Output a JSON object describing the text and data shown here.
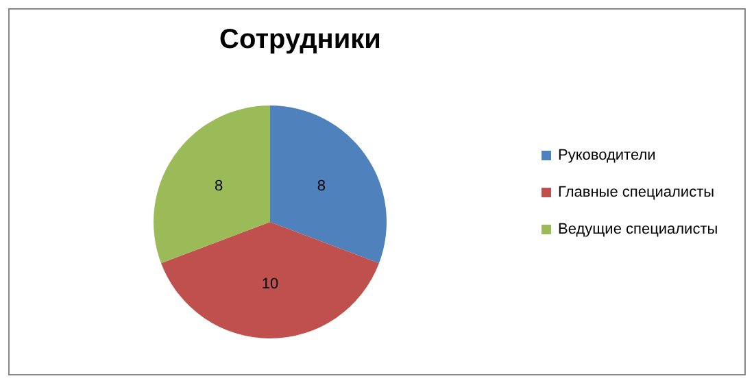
{
  "chart_data": {
    "type": "pie",
    "title": "Сотрудники",
    "categories": [
      "Руководители",
      "Главные специалисты",
      "Ведущие специалисты"
    ],
    "values": [
      8,
      10,
      8
    ],
    "colors": [
      "#4f81bd",
      "#c0504d",
      "#9bbb59"
    ],
    "data_labels": true,
    "legend": "right"
  }
}
